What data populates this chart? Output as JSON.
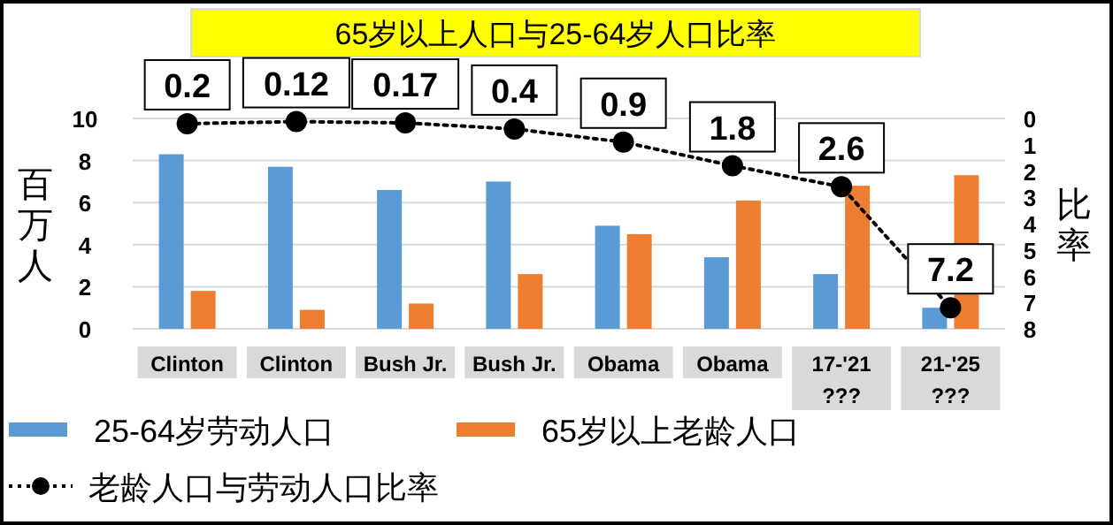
{
  "chart_data": {
    "type": "bar",
    "title": "65岁以上人口与25-64岁人口比率",
    "ylabel": "百万人",
    "y2label": "比率",
    "categories": [
      "Clinton",
      "Clinton",
      "Bush Jr.",
      "Bush Jr.",
      "Obama",
      "Obama",
      "17-'21\n???",
      "21-'25\n???"
    ],
    "series": [
      {
        "name": "25-64岁劳动人口",
        "color": "#5b9bd5",
        "values": [
          8.3,
          7.7,
          6.6,
          7.0,
          4.9,
          3.4,
          2.6,
          1.0
        ]
      },
      {
        "name": "65岁以上老龄人口",
        "color": "#ed7d31",
        "values": [
          1.8,
          0.9,
          1.2,
          2.6,
          4.5,
          6.1,
          6.8,
          7.3
        ]
      },
      {
        "name": "老龄人口与劳动人口比率",
        "type": "line",
        "axis": "y2",
        "color": "#000000",
        "marker": "circle",
        "line_style": "dotted",
        "values": [
          0.2,
          0.12,
          0.17,
          0.4,
          0.9,
          1.8,
          2.6,
          7.2
        ],
        "value_labels": [
          "0.2",
          "0.12",
          "0.17",
          "0.4",
          "0.9",
          "1.8",
          "2.6",
          "7.2"
        ]
      }
    ],
    "ylim": [
      0,
      10
    ],
    "yticks": [
      0,
      2,
      4,
      6,
      8,
      10
    ],
    "y2lim": [
      8,
      0
    ],
    "y2ticks": [
      0,
      1,
      2,
      3,
      4,
      5,
      6,
      7,
      8
    ],
    "grid": "y",
    "legend": "bottom"
  }
}
